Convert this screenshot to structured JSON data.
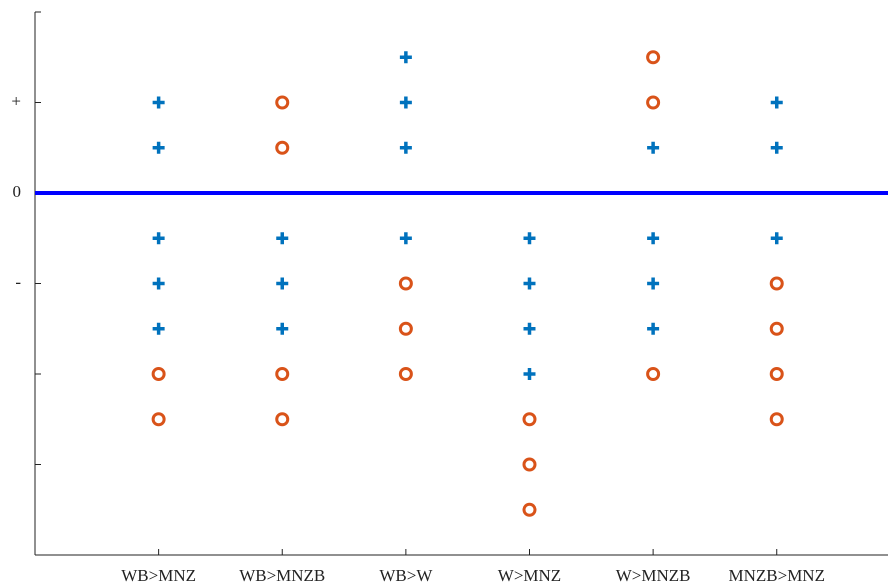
{
  "chart_data": {
    "type": "scatter",
    "xlim": [
      0,
      6.9
    ],
    "xticks": [
      {
        "value": 1,
        "label": "WB>MNZ"
      },
      {
        "value": 2,
        "label": "WB>MNZB"
      },
      {
        "value": 3,
        "label": "WB>W"
      },
      {
        "value": 4,
        "label": "W>MNZ"
      },
      {
        "value": 5,
        "label": "W>MNZB"
      },
      {
        "value": 6,
        "label": "MNZB>MNZ"
      }
    ],
    "ylim": [
      -4,
      2
    ],
    "yticks": [
      {
        "value": -3,
        "label": null
      },
      {
        "value": -2,
        "label": null
      },
      {
        "value": -1,
        "label": "-"
      },
      0,
      {
        "value": 1,
        "label": "+"
      },
      {
        "value": 2,
        "label": null
      }
    ],
    "hline": {
      "value": 0,
      "color": "#0000ff"
    },
    "series": [
      {
        "marker": "plus",
        "color": "#0072bd",
        "x": [
          1,
          1,
          1,
          1,
          1,
          2,
          2,
          2,
          3,
          3,
          3,
          3,
          4,
          4,
          4,
          4,
          5,
          5,
          5,
          5,
          6,
          6,
          6
        ],
        "values": [
          1,
          0.5,
          -0.5,
          -1,
          -1.5,
          -0.5,
          -1,
          -1.5,
          1.5,
          1,
          0.5,
          -0.5,
          -0.5,
          -1,
          -1.5,
          -2,
          0.5,
          -0.5,
          -1,
          -1.5,
          1,
          0.5,
          -0.5
        ]
      },
      {
        "marker": "circle",
        "color": "#d95319",
        "x": [
          1,
          1,
          2,
          2,
          2,
          2,
          3,
          3,
          3,
          4,
          4,
          4,
          5,
          5,
          5,
          6,
          6,
          6,
          6
        ],
        "values": [
          -2,
          -2.5,
          1,
          0.5,
          -2,
          -2.5,
          -1,
          -1.5,
          -2,
          -2.5,
          -3,
          -3.5,
          1.5,
          1,
          -2,
          -1,
          -1.5,
          -2,
          -2.5
        ]
      }
    ]
  }
}
